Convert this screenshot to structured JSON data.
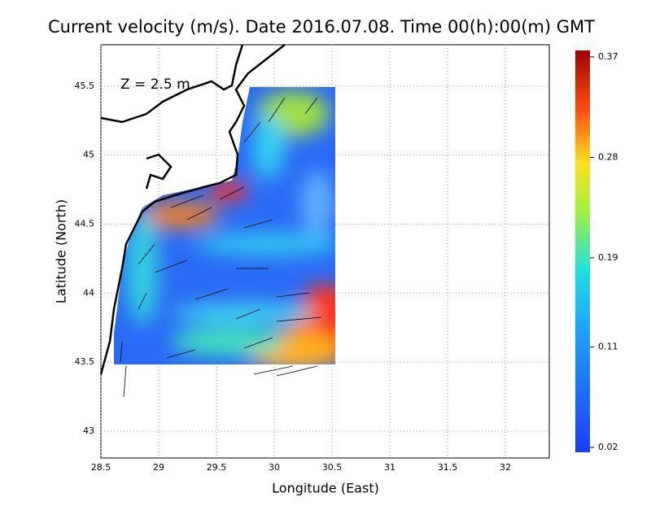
{
  "chart_data": {
    "type": "map",
    "title": "Current velocity (m/s). Date 2016.07.08. Time 00(h):00(m) GMT",
    "annotation": "Z = 2.5 m",
    "x_label": "Longitude (East)",
    "y_label": "Latitude (North)",
    "xlim": [
      28.5,
      32.38
    ],
    "xticks": [
      28.5,
      29,
      29.5,
      30,
      30.5,
      31,
      31.5,
      32
    ],
    "ylim": [
      42.805,
      45.8
    ],
    "yticks": [
      43,
      43.5,
      44,
      44.5,
      45,
      45.5
    ],
    "grid": true,
    "colorbar": {
      "lim": [
        0.02,
        0.37
      ],
      "ticks": [
        0.02,
        0.11,
        0.19,
        0.28,
        0.37
      ]
    }
  }
}
